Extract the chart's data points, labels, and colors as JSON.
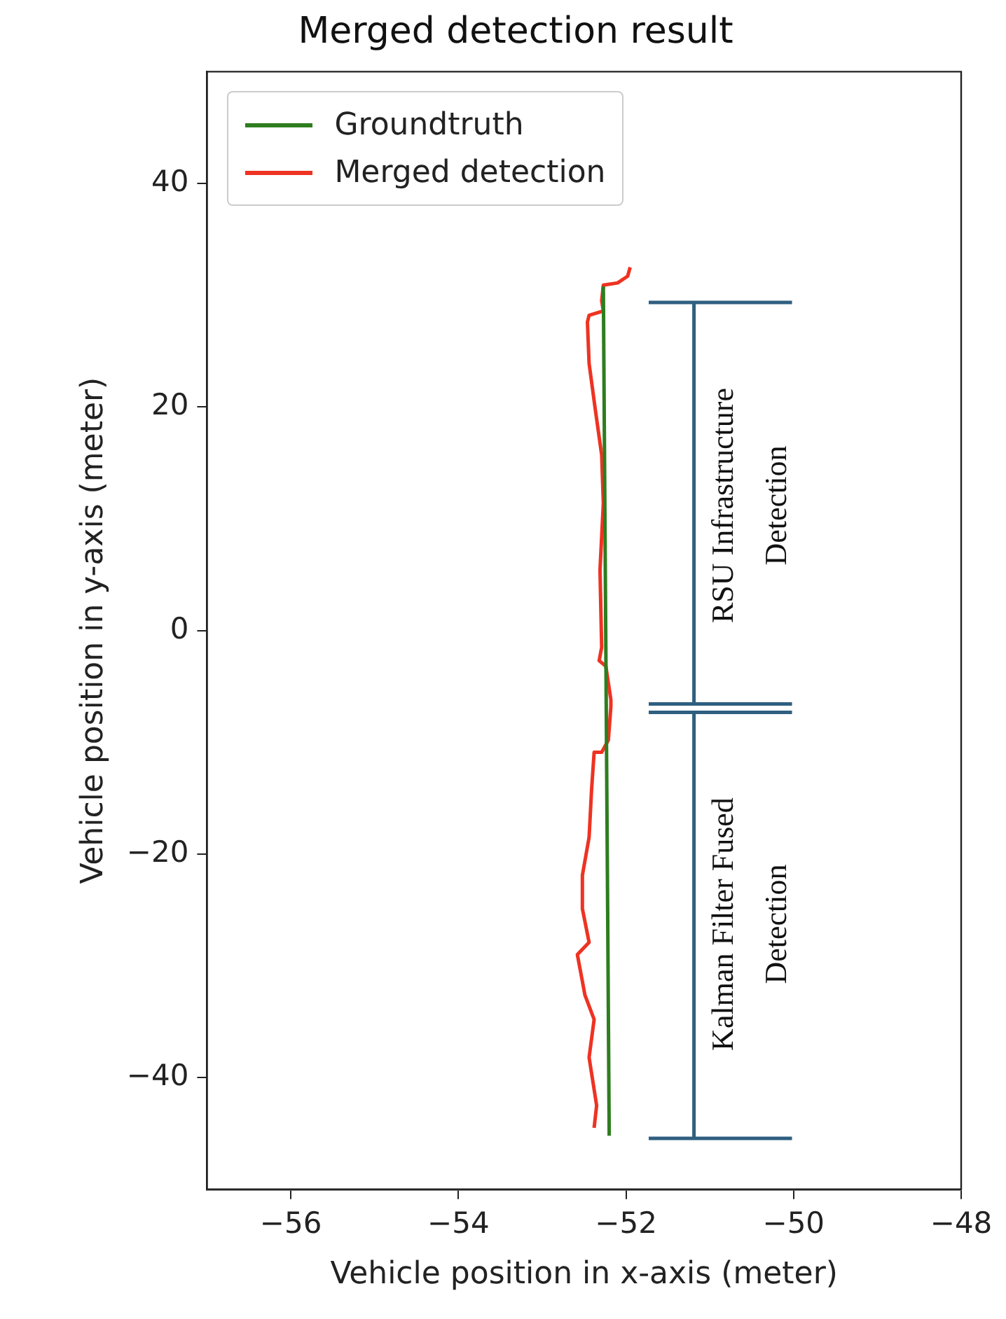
{
  "chart_data": {
    "type": "line",
    "title": "Merged detection result",
    "xlabel": "Vehicle position in x-axis (meter)",
    "ylabel": "Vehicle position in y-axis (meter)",
    "xlim": [
      -57,
      -48
    ],
    "xticks": [
      {
        "value": -56,
        "label": "−56"
      },
      {
        "value": -54,
        "label": "−54"
      },
      {
        "value": -52,
        "label": "−52"
      },
      {
        "value": -50,
        "label": "−50"
      },
      {
        "value": -48,
        "label": "−48"
      }
    ],
    "ylim": [
      -50,
      50
    ],
    "yticks": [
      {
        "value": -40,
        "label": "−40"
      },
      {
        "value": -20,
        "label": "−20"
      },
      0,
      20,
      40
    ],
    "grid": false,
    "legend": "top left",
    "marker": "none",
    "line_style": "solid",
    "series": [
      {
        "name": "Groundtruth",
        "color": "#2e7d1f",
        "x": [
          -52.27,
          -52.2
        ],
        "values": [
          30.8,
          -45.2
        ]
      },
      {
        "name": "Merged detection",
        "color": "#ee3322",
        "x": [
          -51.95,
          -51.98,
          -52.1,
          -52.27,
          -52.29,
          -52.27,
          -52.44,
          -52.46,
          -52.44,
          -52.37,
          -52.29,
          -52.27,
          -52.31,
          -52.29,
          -52.32,
          -52.24,
          -52.18,
          -52.18,
          -52.21,
          -52.29,
          -52.38,
          -52.41,
          -52.44,
          -52.52,
          -52.52,
          -52.44,
          -52.58,
          -52.49,
          -52.38,
          -52.44,
          -52.35,
          -52.38
        ],
        "values": [
          32.5,
          31.7,
          31.1,
          30.9,
          29.5,
          28.6,
          28.2,
          27.6,
          23.9,
          20.0,
          15.7,
          11.4,
          5.4,
          -1.5,
          -2.7,
          -3.2,
          -6.2,
          -6.8,
          -9.8,
          -10.9,
          -10.9,
          -14.2,
          -18.5,
          -21.9,
          -24.9,
          -27.9,
          -29.0,
          -32.6,
          -34.8,
          -38.2,
          -42.5,
          -44.5
        ]
      }
    ],
    "annotations": [
      "RSU Infrastructure Detection",
      "Kalman Filter Fused Detection"
    ]
  }
}
